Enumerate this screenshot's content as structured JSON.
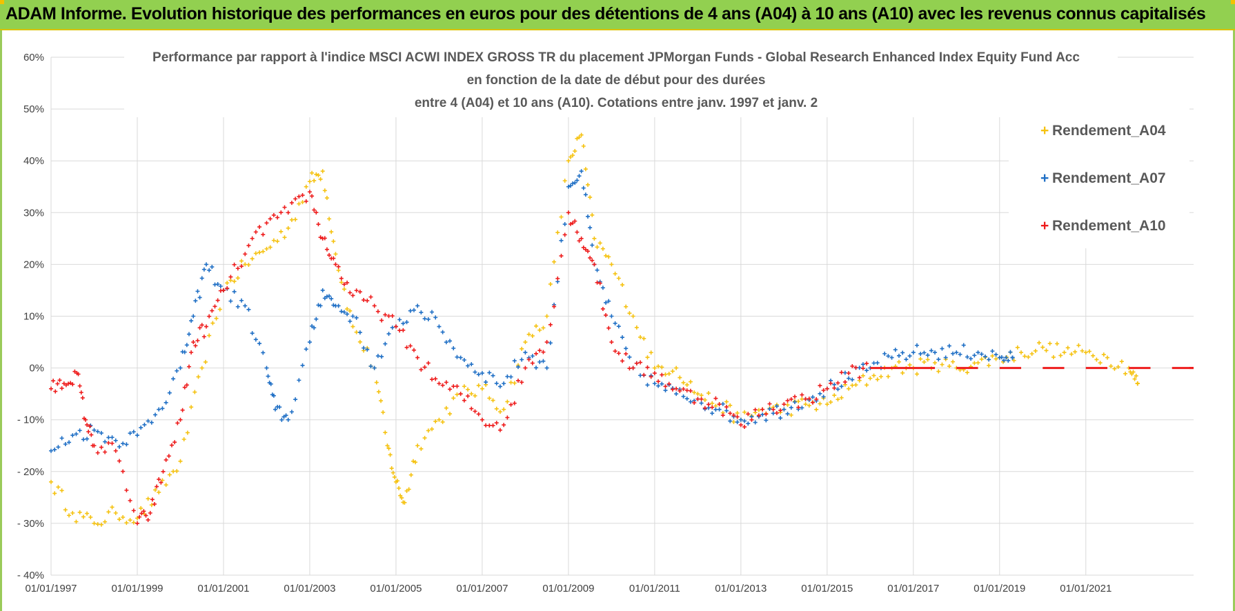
{
  "banner": {
    "title": "ADAM Informe. Evolution historique des performances en euros pour des détentions de 4 ans (A04) à 10 ans (A10) avec les revenus connus capitalisés"
  },
  "colors": {
    "banner": "#92d050",
    "a04": "#f5c211",
    "a07": "#1f6fc5",
    "a10": "#ee1c1c",
    "grid": "#d9d9d9"
  },
  "chart_data": {
    "type": "scatter",
    "title": [
      "Performance par rapport à l'indice MSCI ACWI INDEX GROSS TR  du placement JPMorgan Funds - Global Research Enhanced Index Equity Fund Acc",
      "en fonction de la date de début pour des durées",
      "entre 4 (A04) et 10 ans (A10). Cotations entre janv. 1997 et janv. 2"
    ],
    "xlabel": "",
    "ylabel": "",
    "xlim": [
      1997.0,
      2023.5
    ],
    "ylim": [
      -40,
      60
    ],
    "y_ticks": [
      {
        "v": 60,
        "label": "60%"
      },
      {
        "v": 50,
        "label": "50%"
      },
      {
        "v": 40,
        "label": "40%"
      },
      {
        "v": 30,
        "label": "30%"
      },
      {
        "v": 20,
        "label": "20%"
      },
      {
        "v": 10,
        "label": "10%"
      },
      {
        "v": 0,
        "label": "0%"
      },
      {
        "v": -10,
        "label": "- 10%"
      },
      {
        "v": -20,
        "label": "- 20%"
      },
      {
        "v": -30,
        "label": "- 30%"
      },
      {
        "v": -40,
        "label": "- 40%"
      }
    ],
    "x_ticks": [
      {
        "v": 1997,
        "label": "01/01/1997"
      },
      {
        "v": 1999,
        "label": "01/01/1999"
      },
      {
        "v": 2001,
        "label": "01/01/2001"
      },
      {
        "v": 2003,
        "label": "01/01/2003"
      },
      {
        "v": 2005,
        "label": "01/01/2005"
      },
      {
        "v": 2007,
        "label": "01/01/2007"
      },
      {
        "v": 2009,
        "label": "01/01/2009"
      },
      {
        "v": 2011,
        "label": "01/01/2011"
      },
      {
        "v": 2013,
        "label": "01/01/2013"
      },
      {
        "v": 2015,
        "label": "01/01/2015"
      },
      {
        "v": 2017,
        "label": "01/01/2017"
      },
      {
        "v": 2019,
        "label": "01/01/2019"
      },
      {
        "v": 2021,
        "label": "01/01/2021"
      }
    ],
    "legend_position": "top-right",
    "series": [
      {
        "name": "Rendement_A04",
        "color_key": "a04",
        "x": [
          1997.0,
          1997.5,
          1998.0,
          1998.5,
          1999.0,
          1999.5,
          2000.0,
          2000.5,
          2001.0,
          2001.5,
          2002.0,
          2002.5,
          2003.0,
          2003.3,
          2003.6,
          2004.0,
          2004.5,
          2004.8,
          2005.0,
          2005.2,
          2005.5,
          2006.0,
          2006.5,
          2007.0,
          2007.5,
          2008.0,
          2008.5,
          2009.0,
          2009.3,
          2009.6,
          2010.0,
          2010.5,
          2011.0,
          2011.5,
          2012.0,
          2012.5,
          2013.0,
          2013.5,
          2014.0,
          2014.5,
          2015.0,
          2015.5,
          2016.0,
          2016.5,
          2017.0,
          2017.5,
          2018.0,
          2018.5,
          2019.0,
          2019.5,
          2020.0,
          2020.5,
          2021.0,
          2021.5,
          2022.0,
          2022.2
        ],
        "y": [
          -22,
          -28,
          -30,
          -28,
          -29,
          -24,
          -18,
          0,
          15,
          20,
          23,
          27,
          36,
          38,
          22,
          8,
          0,
          -15,
          -22,
          -26,
          -15,
          -10,
          -5,
          -4,
          -8,
          5,
          10,
          40,
          45,
          25,
          20,
          10,
          0,
          0,
          -5,
          -7,
          -10,
          -8,
          -8,
          -7,
          -7,
          -4,
          -2,
          0,
          0,
          1,
          0,
          1,
          2,
          3,
          4,
          3,
          3,
          2,
          0,
          -3
        ]
      },
      {
        "name": "Rendement_A07",
        "color_key": "a07",
        "x": [
          1997.0,
          1997.5,
          1998.0,
          1998.5,
          1999.0,
          1999.5,
          2000.0,
          2000.3,
          2000.6,
          2001.0,
          2001.5,
          2002.0,
          2002.2,
          2002.5,
          2003.0,
          2003.3,
          2003.6,
          2004.0,
          2004.5,
          2005.0,
          2005.5,
          2006.0,
          2006.5,
          2007.0,
          2007.5,
          2008.0,
          2008.5,
          2009.0,
          2009.3,
          2009.6,
          2010.0,
          2010.5,
          2011.0,
          2011.5,
          2012.0,
          2012.5,
          2013.0,
          2013.5,
          2014.0,
          2014.5,
          2015.0,
          2015.5,
          2016.0,
          2016.5,
          2017.0,
          2017.5,
          2018.0,
          2018.5,
          2019.0,
          2019.3
        ],
        "y": [
          -16,
          -13,
          -12,
          -14,
          -13,
          -8,
          0,
          10,
          20,
          15,
          12,
          0,
          -8,
          -10,
          5,
          15,
          12,
          10,
          0,
          8,
          12,
          8,
          2,
          -1,
          -3,
          3,
          0,
          35,
          38,
          20,
          10,
          0,
          -3,
          -5,
          -6,
          -8,
          -10,
          -9,
          -8,
          -6,
          -4,
          -2,
          0,
          2,
          3,
          3,
          3,
          3,
          2,
          2
        ]
      },
      {
        "name": "Rendement_A10",
        "color_key": "a10",
        "x": [
          1997.0,
          1997.3,
          1997.6,
          1997.8,
          1998.0,
          1998.5,
          1999.0,
          1999.3,
          1999.6,
          2000.0,
          2000.3,
          2000.6,
          2001.0,
          2001.5,
          2002.0,
          2002.5,
          2003.0,
          2003.3,
          2003.6,
          2004.0,
          2004.5,
          2005.0,
          2005.5,
          2006.0,
          2006.5,
          2007.0,
          2007.5,
          2008.0,
          2008.5,
          2009.0,
          2009.3,
          2009.6,
          2010.0,
          2010.5,
          2011.0,
          2011.5,
          2012.0,
          2012.5,
          2013.0,
          2013.5,
          2014.0,
          2014.5,
          2015.0,
          2015.5,
          2016.0,
          2016.5,
          2017.0,
          2018.0,
          2019.0,
          2020.0,
          2021.0,
          2022.0,
          2023.0,
          2023.4
        ],
        "y": [
          -4,
          -3,
          -1,
          -10,
          -15,
          -16,
          -30,
          -28,
          -20,
          -10,
          5,
          8,
          15,
          22,
          28,
          30,
          34,
          25,
          20,
          14,
          12,
          8,
          2,
          -3,
          -5,
          -10,
          -11,
          0,
          5,
          30,
          25,
          20,
          5,
          0,
          -1,
          -4,
          -6,
          -7,
          -11,
          -8,
          -7,
          -6,
          -4,
          -1,
          0,
          0,
          0,
          0,
          0,
          0,
          0,
          0,
          0,
          0
        ]
      }
    ]
  }
}
